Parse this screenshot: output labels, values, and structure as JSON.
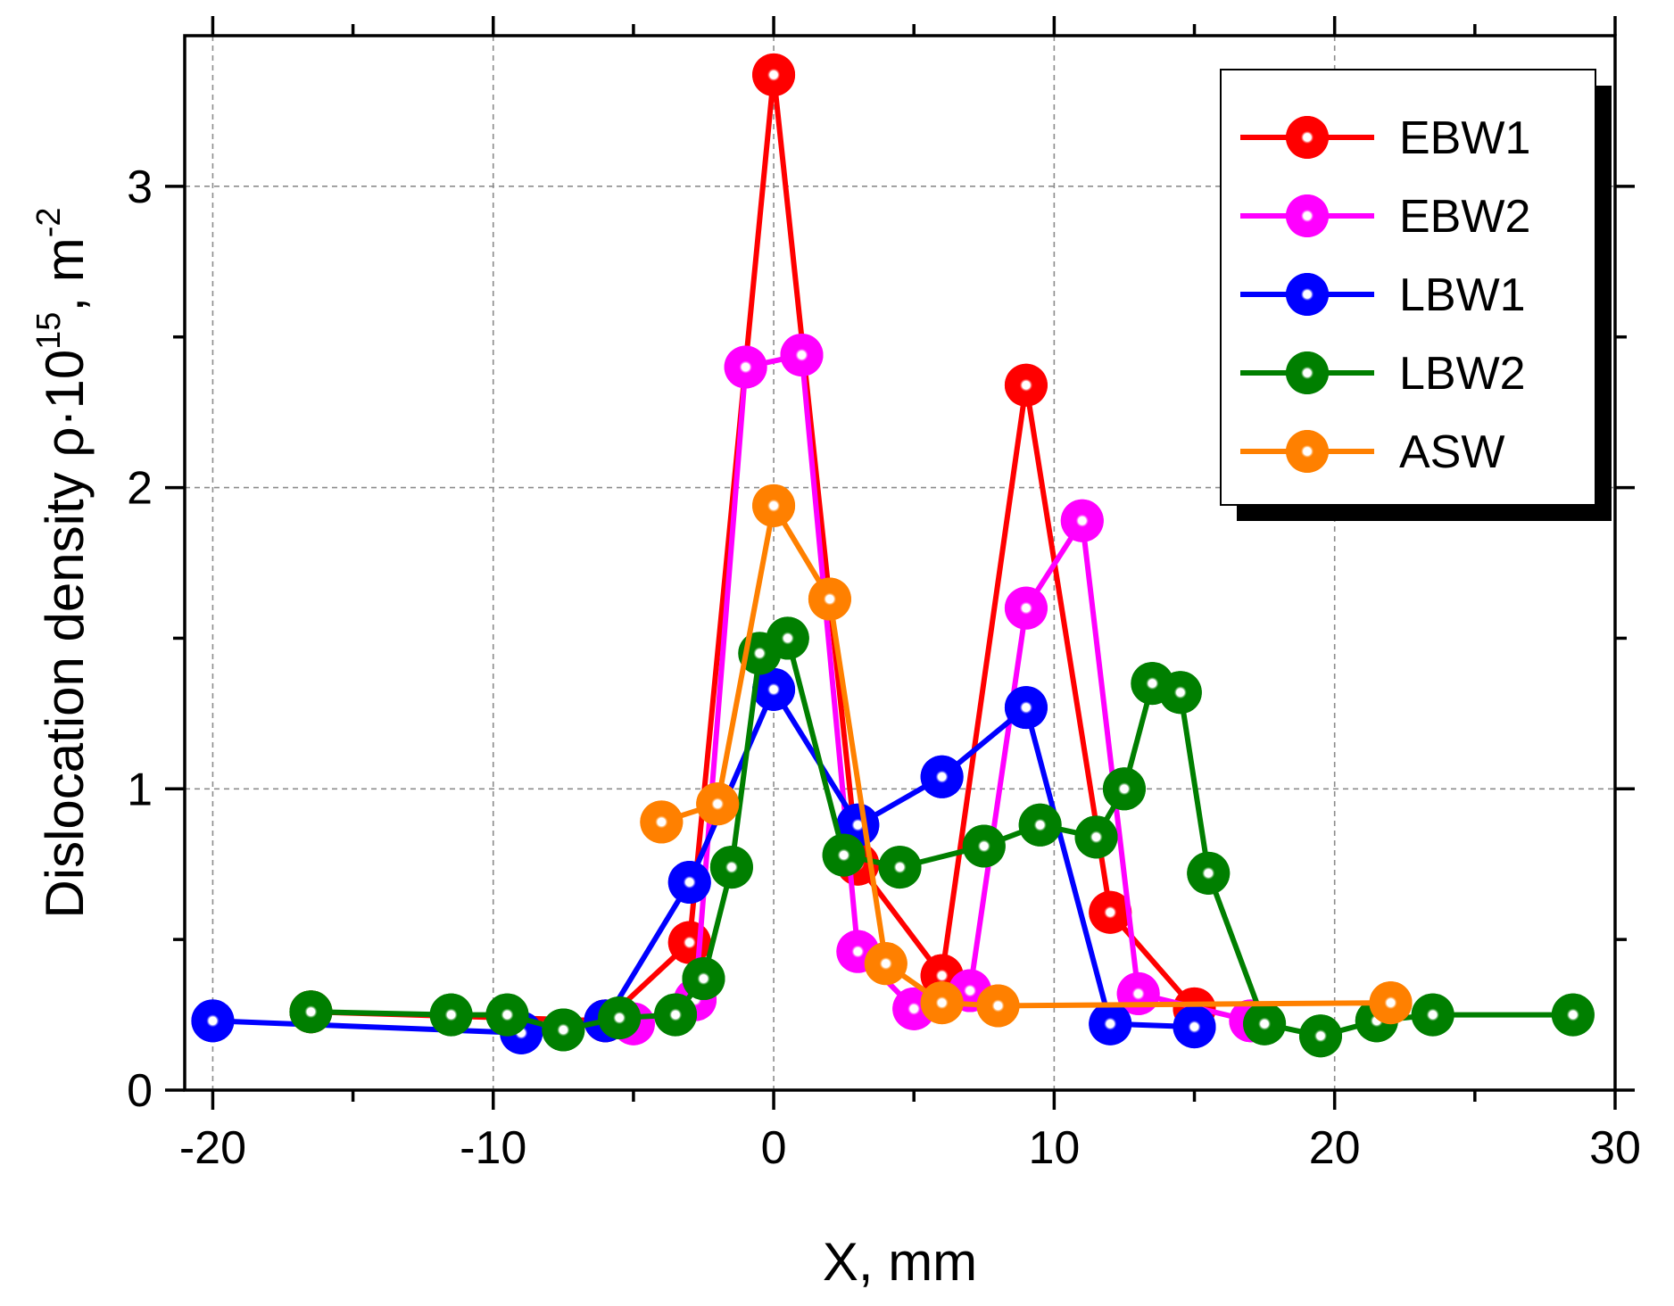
{
  "chart_data": {
    "type": "line",
    "title": "",
    "xlabel": "X, mm",
    "ylabel": {
      "main": "Dislocation density ρ·10",
      "sup1": "15",
      "mid": ", m",
      "sup2": "-2"
    },
    "xlim": [
      -21,
      30
    ],
    "ylim": [
      0,
      3.5
    ],
    "xticks": [
      -20,
      -10,
      0,
      10,
      20,
      30
    ],
    "yticks": [
      0,
      1,
      2,
      3
    ],
    "grid": true,
    "legend_position": "top-right",
    "series": [
      {
        "name": "EBW1",
        "color": "#ff0000",
        "x": [
          -16.5,
          -6,
          -3,
          0,
          3,
          6,
          9,
          12,
          15
        ],
        "y": [
          0.26,
          0.23,
          0.49,
          3.37,
          0.75,
          0.38,
          2.34,
          0.59,
          0.27
        ]
      },
      {
        "name": "EBW2",
        "color": "#ff00ff",
        "x": [
          -5,
          -2.8,
          -1,
          1,
          3,
          5,
          7,
          9,
          11,
          13,
          17
        ],
        "y": [
          0.22,
          0.3,
          2.4,
          2.44,
          0.46,
          0.27,
          0.33,
          1.6,
          1.89,
          0.32,
          0.23
        ]
      },
      {
        "name": "LBW1",
        "color": "#0000ff",
        "x": [
          -20,
          -9,
          -6,
          -3,
          0,
          3,
          6,
          9,
          12,
          15
        ],
        "y": [
          0.23,
          0.19,
          0.23,
          0.69,
          1.33,
          0.88,
          1.04,
          1.27,
          0.22,
          0.21
        ]
      },
      {
        "name": "LBW2",
        "color": "#007f00",
        "x": [
          -16.5,
          -11.5,
          -9.5,
          -7.5,
          -5.5,
          -3.5,
          -2.5,
          -1.5,
          -0.5,
          0.5,
          2.5,
          4.5,
          7.5,
          9.5,
          11.5,
          12.5,
          13.5,
          14.5,
          15.5,
          17.5,
          19.5,
          21.5,
          23.5,
          28.5
        ],
        "y": [
          0.26,
          0.25,
          0.25,
          0.2,
          0.24,
          0.25,
          0.37,
          0.74,
          1.45,
          1.5,
          0.78,
          0.74,
          0.81,
          0.88,
          0.84,
          1.0,
          1.35,
          1.32,
          0.72,
          0.22,
          0.18,
          0.23,
          0.25,
          0.25
        ]
      },
      {
        "name": "ASW",
        "color": "#ff8000",
        "x": [
          -4,
          -2,
          0,
          2,
          4,
          6,
          8,
          22
        ],
        "y": [
          0.89,
          0.95,
          1.94,
          1.63,
          0.42,
          0.29,
          0.28,
          0.29
        ]
      }
    ]
  }
}
